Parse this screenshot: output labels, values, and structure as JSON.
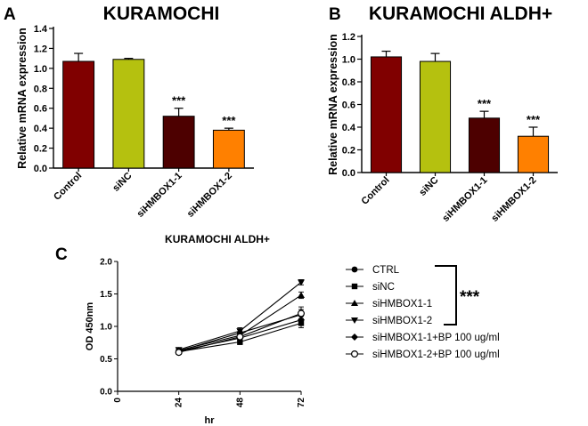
{
  "panels": [
    "A",
    "B",
    "C"
  ],
  "chart_data": [
    {
      "type": "bar",
      "title": "KURAMOCHI",
      "ylabel": "Relative mRNA expression",
      "ylim": [
        0,
        1.4
      ],
      "yticks": [
        "0.0",
        "0.2",
        "0.4",
        "0.6",
        "0.8",
        "1.0",
        "1.2",
        "1.4"
      ],
      "categories": [
        "Control",
        "siNC",
        "siHMBOX1-1",
        "siHMBOX1-2"
      ],
      "values": [
        1.07,
        1.09,
        0.52,
        0.38
      ],
      "errors": [
        0.08,
        0.01,
        0.08,
        0.02
      ],
      "colors": [
        "#800000",
        "#b5c10f",
        "#4d0000",
        "#ff8000"
      ],
      "annotations": [
        "",
        "",
        "***",
        "***"
      ]
    },
    {
      "type": "bar",
      "title": "KURAMOCHI ALDH+",
      "ylabel": "Relative mRNA expression",
      "ylim": [
        0,
        1.2
      ],
      "yticks": [
        "0.0",
        "0.2",
        "0.4",
        "0.6",
        "0.8",
        "1.0",
        "1.2"
      ],
      "categories": [
        "Control",
        "siNC",
        "siHMBOX1-1",
        "siHMBOX1-2"
      ],
      "values": [
        1.02,
        0.98,
        0.48,
        0.32
      ],
      "errors": [
        0.05,
        0.07,
        0.06,
        0.08
      ],
      "colors": [
        "#800000",
        "#b5c10f",
        "#4d0000",
        "#ff8000"
      ],
      "annotations": [
        "",
        "",
        "***",
        "***"
      ]
    },
    {
      "type": "line",
      "title": "KURAMOCHI ALDH+",
      "xlabel": "hr",
      "ylabel": "OD 450nm",
      "x": [
        0,
        24,
        48,
        72
      ],
      "xlim": [
        0,
        72
      ],
      "ylim": [
        0,
        2.0
      ],
      "yticks": [
        "0.0",
        "0.5",
        "1.0",
        "1.5",
        "2.0"
      ],
      "series": [
        {
          "name": "CTRL",
          "marker": "circle-filled",
          "x": [
            24,
            48,
            72
          ],
          "values": [
            0.62,
            0.9,
            1.18
          ],
          "errors": [
            0.03,
            0.05,
            0.08
          ]
        },
        {
          "name": "siNC",
          "marker": "square",
          "x": [
            24,
            48,
            72
          ],
          "values": [
            0.61,
            0.76,
            1.05
          ],
          "errors": [
            0.03,
            0.04,
            0.07
          ]
        },
        {
          "name": "siHMBOX1-1",
          "marker": "triangle-up",
          "x": [
            24,
            48,
            72
          ],
          "values": [
            0.63,
            0.86,
            1.48
          ],
          "errors": [
            0.03,
            0.05,
            0.05
          ]
        },
        {
          "name": "siHMBOX1-2",
          "marker": "triangle-down",
          "x": [
            24,
            48,
            72
          ],
          "values": [
            0.64,
            0.93,
            1.68
          ],
          "errors": [
            0.03,
            0.05,
            0.04
          ]
        },
        {
          "name": "siHMBOX1-1+BP 100 ug/ml",
          "marker": "diamond",
          "x": [
            24,
            48,
            72
          ],
          "values": [
            0.62,
            0.82,
            1.1
          ],
          "errors": [
            0.03,
            0.05,
            0.06
          ]
        },
        {
          "name": "siHMBOX1-2+BP 100 ug/ml",
          "marker": "circle-open",
          "x": [
            24,
            48,
            72
          ],
          "values": [
            0.6,
            0.84,
            1.2
          ],
          "errors": [
            0.03,
            0.06,
            0.1
          ]
        }
      ],
      "legend_position": "right",
      "significance": "***"
    }
  ]
}
